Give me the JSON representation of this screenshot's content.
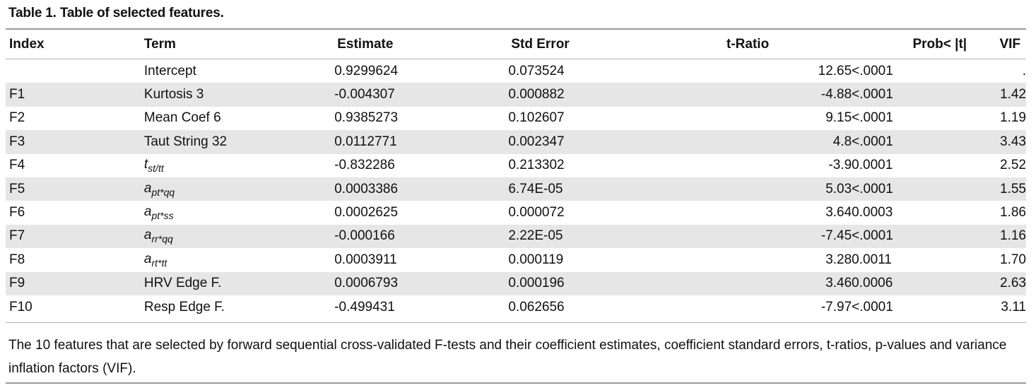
{
  "caption": "Table 1. Table of selected features.",
  "headers": {
    "index": "Index",
    "term": "Term",
    "estimate": "Estimate",
    "std_error": "Std Error",
    "t_ratio": "t-Ratio",
    "prob": "Prob< |t|",
    "vif": "VIF"
  },
  "rows": [
    {
      "index": "",
      "term": "Intercept",
      "term_base": "",
      "term_sub": "",
      "estimate": " 0.9299624",
      "std_error": "0.073524",
      "t_ratio": "12.65",
      "prob": "<.0001",
      "vif": "."
    },
    {
      "index": "F1",
      "term": "Kurtosis 3",
      "term_base": "",
      "term_sub": "",
      "estimate": "-0.004307",
      "std_error": "0.000882",
      "t_ratio": "-4.88",
      "prob": "<.0001",
      "vif": "1.42"
    },
    {
      "index": "F2",
      "term": "Mean Coef 6",
      "term_base": "",
      "term_sub": "",
      "estimate": " 0.9385273",
      "std_error": "0.102607",
      "t_ratio": "9.15",
      "prob": "<.0001",
      "vif": "1.19"
    },
    {
      "index": "F3",
      "term": "Taut String 32",
      "term_base": "",
      "term_sub": "",
      "estimate": " 0.0112771",
      "std_error": "0.002347",
      "t_ratio": "4.8",
      "prob": "<.0001",
      "vif": "3.43"
    },
    {
      "index": "F4",
      "term": "",
      "term_base": "t",
      "term_sub": "st/tt",
      "estimate": "-0.832286",
      "std_error": "0.213302",
      "t_ratio": "-3.9",
      "prob": "0.0001",
      "vif": "2.52"
    },
    {
      "index": "F5",
      "term": "",
      "term_base": "a",
      "term_sub": "pt*qq",
      "estimate": " 0.0003386",
      "std_error": "6.74E-05",
      "t_ratio": "5.03",
      "prob": "<.0001",
      "vif": "1.55"
    },
    {
      "index": "F6",
      "term": "",
      "term_base": "a",
      "term_sub": "pt*ss",
      "estimate": " 0.0002625",
      "std_error": "0.000072",
      "t_ratio": "3.64",
      "prob": "0.0003",
      "vif": "1.86"
    },
    {
      "index": "F7",
      "term": "",
      "term_base": "a",
      "term_sub": "rr*qq",
      "estimate": "-0.000166",
      "std_error": "2.22E-05",
      "t_ratio": "-7.45",
      "prob": "<.0001",
      "vif": "1.16"
    },
    {
      "index": "F8",
      "term": "",
      "term_base": "a",
      "term_sub": "rt*tt",
      "estimate": " 0.0003911",
      "std_error": "0.000119",
      "t_ratio": "3.28",
      "prob": "0.0011",
      "vif": "1.70"
    },
    {
      "index": "F9",
      "term": "HRV Edge F.",
      "term_base": "",
      "term_sub": "",
      "estimate": " 0.0006793",
      "std_error": "0.000196",
      "t_ratio": "3.46",
      "prob": "0.0006",
      "vif": "2.63"
    },
    {
      "index": "F10",
      "term": "Resp Edge F.",
      "term_base": "",
      "term_sub": "",
      "estimate": "-0.499431",
      "std_error": "0.062656",
      "t_ratio": "-7.97",
      "prob": "<.0001",
      "vif": "3.11"
    }
  ],
  "footnote": "The 10 features that are selected by forward sequential cross-validated F-tests and their coefficient estimates, coefficient standard errors, t-ratios, p-values and variance inflation factors (VIF)."
}
